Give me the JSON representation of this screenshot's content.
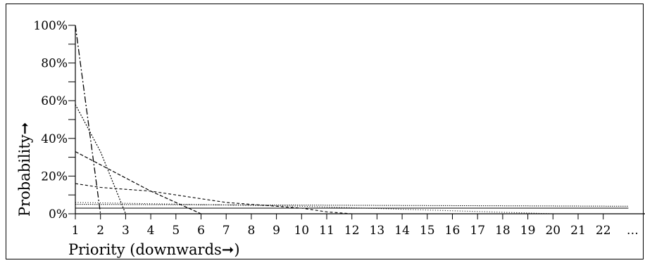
{
  "chart_data": {
    "type": "line",
    "xlabel": "Priority (downwards➞)",
    "ylabel": "Probability➞",
    "x_ticks": [
      "1",
      "2",
      "3",
      "4",
      "5",
      "6",
      "7",
      "8",
      "9",
      "10",
      "11",
      "12",
      "13",
      "14",
      "15",
      "16",
      "17",
      "18",
      "19",
      "20",
      "21",
      "22",
      "…"
    ],
    "y_ticks": [
      "0%",
      "20%",
      "40%",
      "60%",
      "80%",
      "100%"
    ],
    "ylim": [
      0,
      100
    ],
    "xlim": [
      1,
      23
    ],
    "grid": false,
    "series": [
      {
        "style": "dashdot-long",
        "values": [
          [
            1,
            100
          ],
          [
            2,
            0
          ]
        ]
      },
      {
        "style": "dotted",
        "values": [
          [
            1,
            58
          ],
          [
            2,
            33
          ],
          [
            3,
            0
          ]
        ]
      },
      {
        "style": "dashed",
        "values": [
          [
            1,
            33
          ],
          [
            2,
            26
          ],
          [
            3,
            19
          ],
          [
            4,
            12
          ],
          [
            5,
            6
          ],
          [
            6,
            0
          ]
        ]
      },
      {
        "style": "dashed-short",
        "values": [
          [
            1,
            16
          ],
          [
            2,
            14
          ],
          [
            3,
            13
          ],
          [
            4,
            12
          ],
          [
            5,
            10
          ],
          [
            6,
            8
          ],
          [
            7,
            6
          ],
          [
            8,
            5
          ],
          [
            9,
            4
          ],
          [
            10,
            3
          ],
          [
            11,
            1
          ],
          [
            12,
            0
          ]
        ]
      },
      {
        "style": "fine-dotted",
        "values": [
          [
            1,
            6
          ],
          [
            10,
            4
          ],
          [
            20,
            0
          ]
        ]
      },
      {
        "style": "dotted-flat",
        "values": [
          [
            1,
            5
          ],
          [
            23,
            4
          ]
        ]
      },
      {
        "style": "solid",
        "values": [
          [
            1,
            3
          ],
          [
            23,
            3
          ]
        ]
      }
    ]
  }
}
